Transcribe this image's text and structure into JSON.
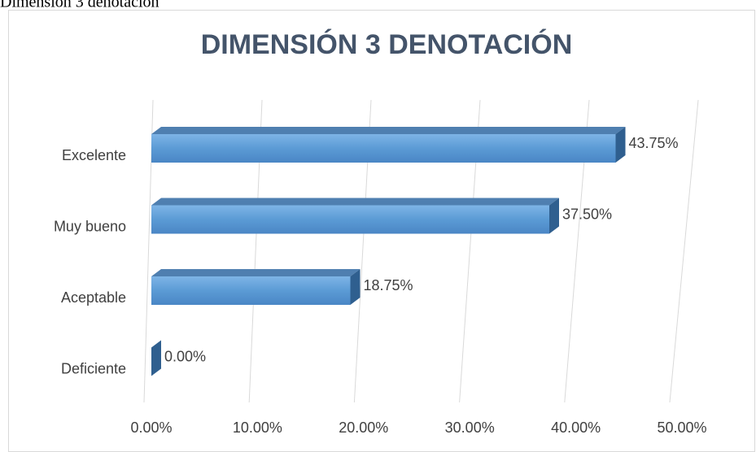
{
  "caption": "Dimensión 3 denotación",
  "chart_data": {
    "type": "bar3d_horizontal",
    "title": "DIMENSIÓN 3 DENOTACIÓN",
    "categories": [
      "Excelente",
      "Muy bueno",
      "Aceptable",
      "Deficiente"
    ],
    "values": [
      43.75,
      37.5,
      18.75,
      0
    ],
    "value_labels": [
      "43.75%",
      "37.50%",
      "18.75%",
      "0.00%"
    ],
    "color": "#5b9bd5",
    "xlim": [
      0,
      50
    ],
    "xticks": [
      {
        "value": 0,
        "label": "0.00%"
      },
      {
        "value": 10,
        "label": "10.00%"
      },
      {
        "value": 20,
        "label": "20.00%"
      },
      {
        "value": 30,
        "label": "30.00%"
      },
      {
        "value": 40,
        "label": "40.00%"
      },
      {
        "value": 50,
        "label": "50.00%"
      }
    ],
    "grid": true
  }
}
